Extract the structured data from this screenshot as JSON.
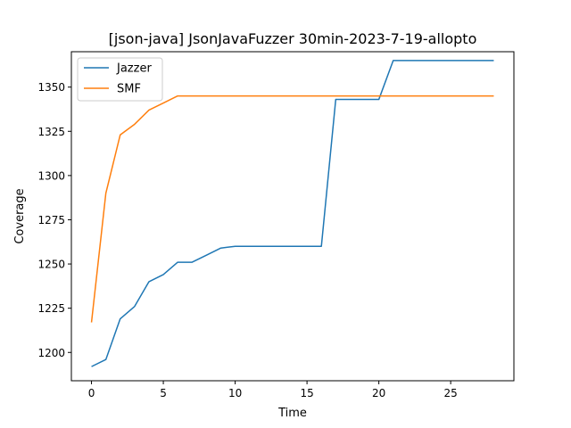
{
  "chart_data": {
    "type": "line",
    "title": "[json-java] JsonJavaFuzzer 30min-2023-7-19-allopto",
    "xlabel": "Time",
    "ylabel": "Coverage",
    "xlim": [
      -1.4,
      29.4
    ],
    "ylim": [
      1184,
      1370
    ],
    "xticks": [
      0,
      5,
      10,
      15,
      20,
      25
    ],
    "yticks": [
      1200,
      1225,
      1250,
      1275,
      1300,
      1325,
      1350
    ],
    "grid": false,
    "legend_position": "top-left",
    "series": [
      {
        "name": "Jazzer",
        "color": "#1f77b4",
        "x": [
          0,
          1,
          2,
          3,
          4,
          5,
          6,
          7,
          8,
          9,
          10,
          11,
          12,
          13,
          14,
          15,
          16,
          17,
          18,
          19,
          20,
          21,
          22,
          23,
          24,
          25,
          26,
          27,
          28
        ],
        "y": [
          1192,
          1196,
          1219,
          1226,
          1240,
          1244,
          1251,
          1251,
          1255,
          1259,
          1260,
          1260,
          1260,
          1260,
          1260,
          1260,
          1260,
          1343,
          1343,
          1343,
          1343,
          1365,
          1365,
          1365,
          1365,
          1365,
          1365,
          1365,
          1365
        ]
      },
      {
        "name": "SMF",
        "color": "#ff7f0e",
        "x": [
          0,
          1,
          2,
          3,
          4,
          5,
          6,
          7,
          8,
          9,
          10,
          11,
          12,
          13,
          14,
          15,
          16,
          17,
          18,
          19,
          20,
          21,
          22,
          23,
          24,
          25,
          26,
          27,
          28
        ],
        "y": [
          1217,
          1290,
          1323,
          1329,
          1337,
          1341,
          1345,
          1345,
          1345,
          1345,
          1345,
          1345,
          1345,
          1345,
          1345,
          1345,
          1345,
          1345,
          1345,
          1345,
          1345,
          1345,
          1345,
          1345,
          1345,
          1345,
          1345,
          1345,
          1345
        ]
      }
    ]
  }
}
